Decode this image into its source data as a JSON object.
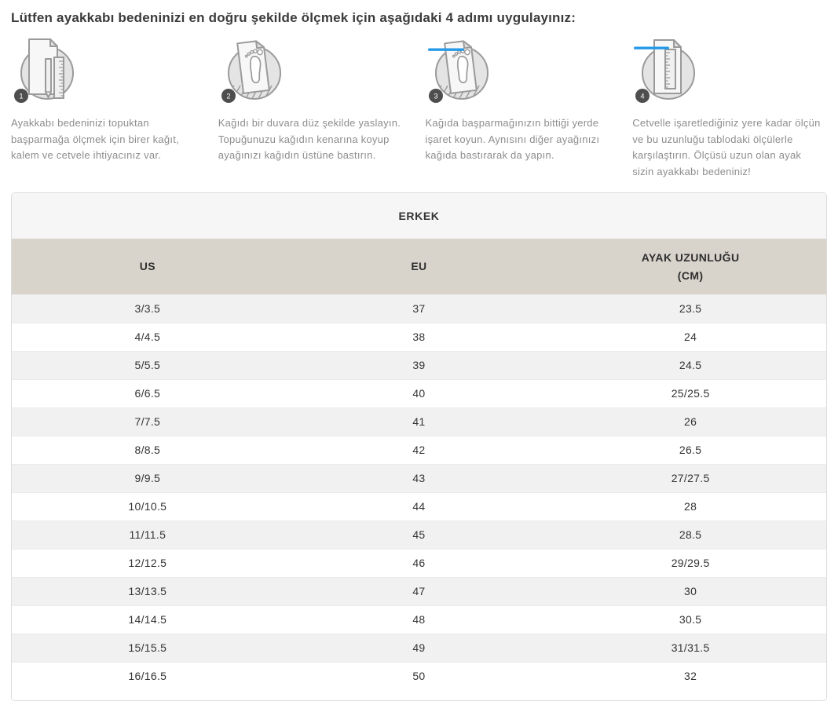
{
  "page": {
    "title": "Lütfen ayakkabı bedeninizi en doğru şekilde ölçmek için aşağıdaki 4 adımı uygulayınız:"
  },
  "steps": [
    {
      "number": "1",
      "icon": "paper-pen-ruler-icon",
      "text": "Ayakkabı bedeninizi topuktan başparmağa ölçmek için birer kağıt, kalem ve cetvele ihtiyacınız var."
    },
    {
      "number": "2",
      "icon": "paper-footprint-icon",
      "text": "Kağıdı bir duvara düz şekilde yaslayın. Topuğunuzu kağıdın kenarına koyup ayağınızı kağıdın üstüne bastırın."
    },
    {
      "number": "3",
      "icon": "paper-footprint-mark-icon",
      "text": "Kağıda başparmağınızın bittiği yerde işaret koyun. Aynısını diğer ayağınızı kağıda bastırarak da yapın."
    },
    {
      "number": "4",
      "icon": "paper-ruler-measure-icon",
      "text": "Cetvelle işaretlediğiniz yere kadar ölçün ve bu uzunluğu tablodaki ölçülerle karşılaştırın. Ölçüsü uzun olan ayak sizin ayakkabı bedeniniz!"
    }
  ],
  "size_table": {
    "group_header": "ERKEK",
    "columns": [
      "US",
      "EU",
      "AYAK UZUNLUĞU (CM)"
    ],
    "rows": [
      [
        "3/3.5",
        "37",
        "23.5"
      ],
      [
        "4/4.5",
        "38",
        "24"
      ],
      [
        "5/5.5",
        "39",
        "24.5"
      ],
      [
        "6/6.5",
        "40",
        "25/25.5"
      ],
      [
        "7/7.5",
        "41",
        "26"
      ],
      [
        "8/8.5",
        "42",
        "26.5"
      ],
      [
        "9/9.5",
        "43",
        "27/27.5"
      ],
      [
        "10/10.5",
        "44",
        "28"
      ],
      [
        "11/11.5",
        "45",
        "28.5"
      ],
      [
        "12/12.5",
        "46",
        "29/29.5"
      ],
      [
        "13/13.5",
        "47",
        "30"
      ],
      [
        "14/14.5",
        "48",
        "30.5"
      ],
      [
        "15/15.5",
        "49",
        "31/31.5"
      ],
      [
        "16/16.5",
        "50",
        "32"
      ]
    ]
  },
  "colors": {
    "accent_blue": "#2699e8",
    "header_band_bg": "#d8d4cc",
    "row_stripe_bg": "#f1f1f1",
    "group_header_bg": "#f6f6f6",
    "badge_bg": "#4e4e4e",
    "icon_gray": "#9a9a9a"
  }
}
